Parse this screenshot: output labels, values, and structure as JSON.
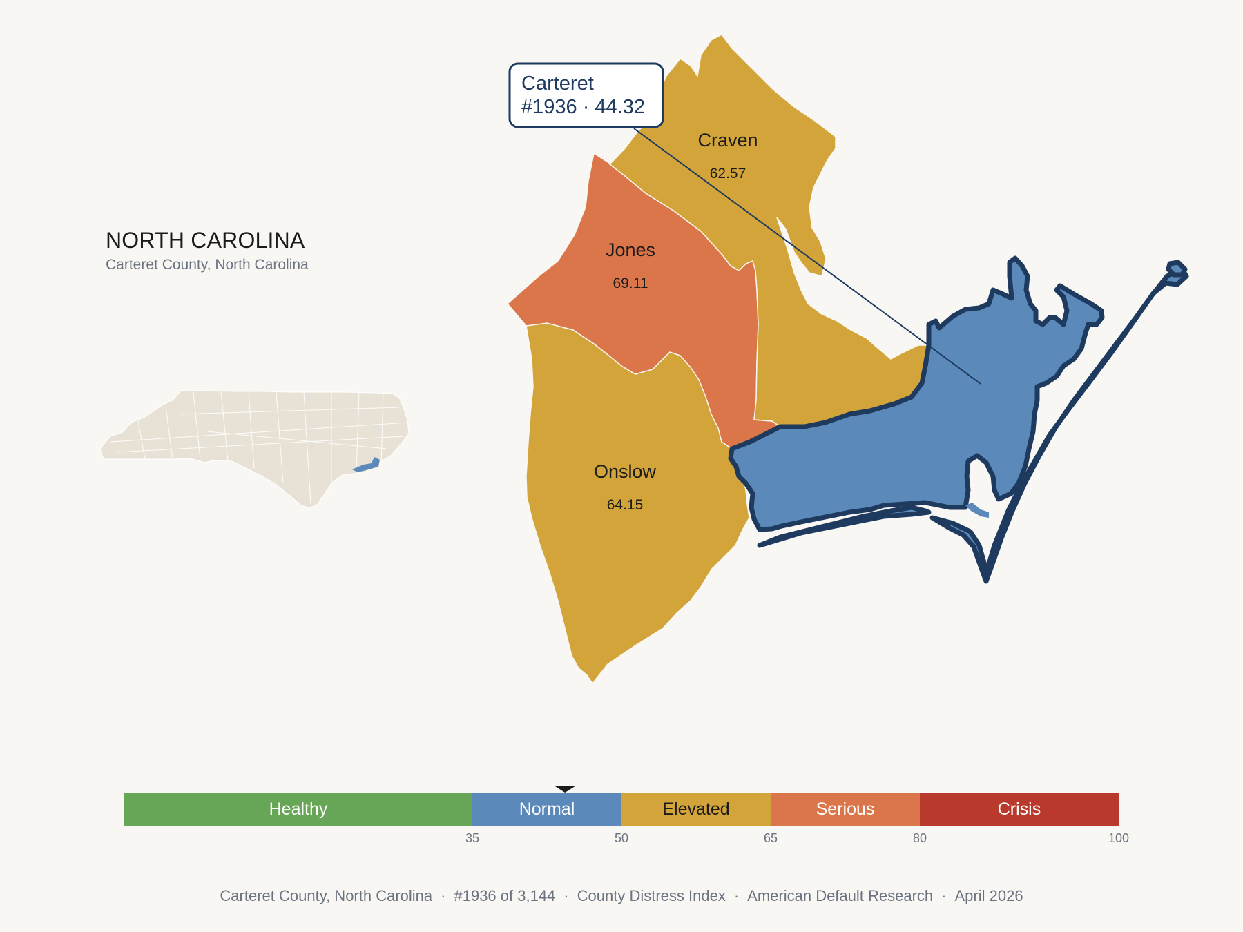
{
  "state": {
    "title": "NORTH CAROLINA",
    "subtitle": "Carteret County, North Carolina"
  },
  "colors": {
    "background": "#f9f7f3",
    "healthy": "#67a657",
    "normal": "#5b8aba",
    "elevated": "#d3a43a",
    "serious": "#db764a",
    "crisis": "#b93a2c",
    "highlight_outline": "#1e3a5f",
    "inset_state": "#e8e2d6"
  },
  "counties": [
    {
      "name": "Craven",
      "value": "62.57",
      "category": "elevated"
    },
    {
      "name": "Jones",
      "value": "69.11",
      "category": "serious"
    },
    {
      "name": "Onslow",
      "value": "64.15",
      "category": "elevated"
    },
    {
      "name": "Carteret",
      "value": "44.32",
      "category": "normal",
      "highlighted": true
    }
  ],
  "tooltip": {
    "line1": "Carteret",
    "line2": "#1936 · 44.32"
  },
  "scale": {
    "segments": [
      {
        "label": "Healthy",
        "from": 0,
        "to": 35,
        "color": "#67a657"
      },
      {
        "label": "Normal",
        "from": 35,
        "to": 50,
        "color": "#5b8aba"
      },
      {
        "label": "Elevated",
        "from": 50,
        "to": 65,
        "color": "#d3a43a"
      },
      {
        "label": "Serious",
        "from": 65,
        "to": 80,
        "color": "#db764a"
      },
      {
        "label": "Crisis",
        "from": 80,
        "to": 100,
        "color": "#b93a2c"
      }
    ],
    "ticks": [
      "35",
      "50",
      "65",
      "80",
      "100"
    ],
    "marker_value": 44.32
  },
  "footer": {
    "county": "Carteret County, North Carolina",
    "rank": "#1936 of 3,144",
    "index": "County Distress Index",
    "source": "American Default Research",
    "date": "April 2026"
  }
}
